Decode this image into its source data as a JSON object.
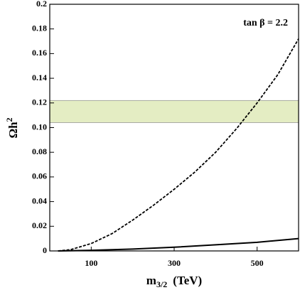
{
  "chart_data": {
    "type": "line",
    "annotation": "tan β = 2.2",
    "y_label": {
      "main": "Ωh",
      "sup": "2"
    },
    "x_label": {
      "main": "m",
      "sub": "3/2",
      "unit": "(TeV)"
    },
    "xlim": [
      0,
      600
    ],
    "ylim": [
      0,
      0.2
    ],
    "xticks": [
      100,
      300,
      500
    ],
    "yticks": [
      0,
      0.02,
      0.04,
      0.06,
      0.08,
      {
        "value": 0.1,
        "label": "0.10"
      },
      0.12,
      0.14,
      0.16,
      0.18,
      0.2
    ],
    "band": {
      "range": [
        0.104,
        0.122
      ],
      "color": "#e4edc3"
    },
    "series": [
      {
        "style": "dashed",
        "color": "#000000",
        "x": [
          20,
          50,
          100,
          150,
          200,
          250,
          300,
          350,
          400,
          450,
          500,
          550,
          600
        ],
        "values": [
          0,
          0.001,
          0.006,
          0.014,
          0.025,
          0.037,
          0.05,
          0.064,
          0.08,
          0.099,
          0.12,
          0.143,
          0.172
        ]
      },
      {
        "style": "solid",
        "color": "#000000",
        "x": [
          20,
          100,
          200,
          300,
          400,
          500,
          600
        ],
        "values": [
          0,
          0.0005,
          0.0015,
          0.003,
          0.005,
          0.007,
          0.01
        ]
      }
    ]
  }
}
